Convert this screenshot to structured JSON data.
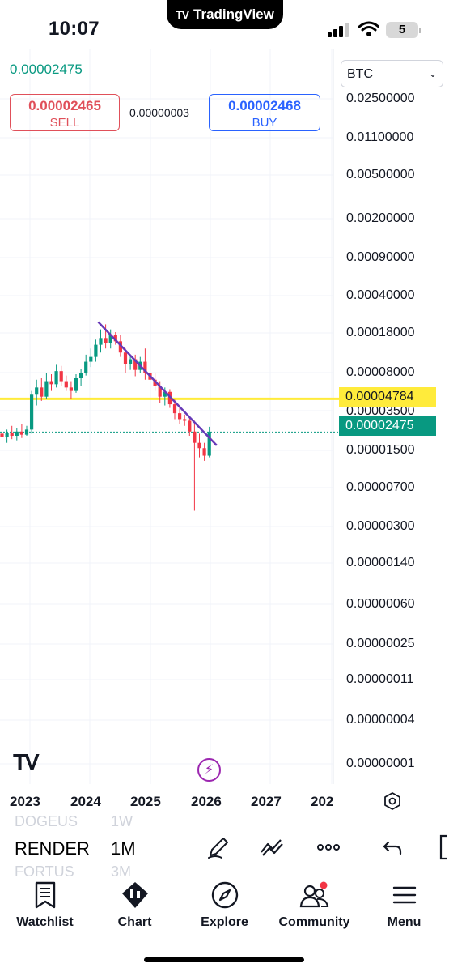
{
  "status": {
    "time": "10:07",
    "app_pill": "TradingView",
    "battery": "5"
  },
  "quote": {
    "last": "0.00002475",
    "sell_value": "0.00002465",
    "sell_label": "SELL",
    "buy_value": "0.00002468",
    "buy_label": "BUY",
    "spread": "0.00000003",
    "currency": "BTC"
  },
  "price_axis": [
    "0.02500000",
    "0.01100000",
    "0.00500000",
    "0.00200000",
    "0.00090000",
    "0.00040000",
    "0.00018000",
    "0.00008000",
    "0.00003500",
    "0.00001500",
    "0.00000700",
    "0.00000300",
    "0.00000140",
    "0.00000060",
    "0.00000025",
    "0.00000011",
    "0.00000004",
    "0.00000001"
  ],
  "tags": {
    "horizontal_line": "0.00004784",
    "current": "0.00002475"
  },
  "time_axis": [
    "2023",
    "2024",
    "2025",
    "2026",
    "2027",
    "202"
  ],
  "symbols": {
    "prev": "DOGEUS",
    "prev_interval": "1W",
    "current": "RENDER",
    "current_interval": "1M",
    "next": "FORTUS",
    "next_interval": "3M"
  },
  "nav": [
    {
      "label": "Watchlist",
      "icon": "watchlist-icon"
    },
    {
      "label": "Chart",
      "icon": "chart-icon"
    },
    {
      "label": "Explore",
      "icon": "explore-icon"
    },
    {
      "label": "Community",
      "icon": "community-icon"
    },
    {
      "label": "Menu",
      "icon": "menu-icon"
    }
  ],
  "colors": {
    "up": "#089981",
    "down": "#f23645",
    "hline": "#ffeb3b",
    "trendline": "#673ab7",
    "accent": "#2962ff"
  },
  "chart_data": {
    "type": "candlestick",
    "scale": "log",
    "horizontal_line": 4.784e-05,
    "last_price": 2.475e-05,
    "candles": [
      {
        "o": 2.4e-05,
        "h": 2.6e-05,
        "l": 2.05e-05,
        "c": 2.25e-05
      },
      {
        "o": 2.25e-05,
        "h": 2.6e-05,
        "l": 2e-05,
        "c": 2.45e-05
      },
      {
        "o": 2.45e-05,
        "h": 2.8e-05,
        "l": 2.15e-05,
        "c": 2.3e-05
      },
      {
        "o": 2.3e-05,
        "h": 2.7e-05,
        "l": 2.1e-05,
        "c": 2.5e-05
      },
      {
        "o": 2.5e-05,
        "h": 2.9e-05,
        "l": 2.2e-05,
        "c": 2.35e-05
      },
      {
        "o": 2.35e-05,
        "h": 2.8e-05,
        "l": 2.3e-05,
        "c": 2.6e-05
      },
      {
        "o": 2.6e-05,
        "h": 5.6e-05,
        "l": 2.4e-05,
        "c": 5.2e-05
      },
      {
        "o": 5.2e-05,
        "h": 7e-05,
        "l": 4.2e-05,
        "c": 6e-05
      },
      {
        "o": 6e-05,
        "h": 7.2e-05,
        "l": 4.6e-05,
        "c": 5e-05
      },
      {
        "o": 5e-05,
        "h": 8e-05,
        "l": 4.8e-05,
        "c": 6.8e-05
      },
      {
        "o": 6.8e-05,
        "h": 7.8e-05,
        "l": 5.6e-05,
        "c": 6.4e-05
      },
      {
        "o": 6.4e-05,
        "h": 9.4e-05,
        "l": 6e-05,
        "c": 8.3e-05
      },
      {
        "o": 8.3e-05,
        "h": 9.2e-05,
        "l": 6.2e-05,
        "c": 6.8e-05
      },
      {
        "o": 6.8e-05,
        "h": 7.6e-05,
        "l": 5.6e-05,
        "c": 6e-05
      },
      {
        "o": 6e-05,
        "h": 6.8e-05,
        "l": 4.8e-05,
        "c": 5.6e-05
      },
      {
        "o": 5.6e-05,
        "h": 7.8e-05,
        "l": 5.4e-05,
        "c": 7.2e-05
      },
      {
        "o": 7.2e-05,
        "h": 8.6e-05,
        "l": 6.2e-05,
        "c": 8e-05
      },
      {
        "o": 8e-05,
        "h": 0.000115,
        "l": 7.6e-05,
        "c": 0.0001
      },
      {
        "o": 0.0001,
        "h": 0.00013,
        "l": 9e-05,
        "c": 0.00011
      },
      {
        "o": 0.00011,
        "h": 0.000155,
        "l": 0.0001,
        "c": 0.00014
      },
      {
        "o": 0.00014,
        "h": 0.00019,
        "l": 0.00012,
        "c": 0.00016
      },
      {
        "o": 0.00016,
        "h": 0.00021,
        "l": 0.00013,
        "c": 0.000145
      },
      {
        "o": 0.000145,
        "h": 0.00019,
        "l": 0.00013,
        "c": 0.00017
      },
      {
        "o": 0.00017,
        "h": 0.00018,
        "l": 0.00014,
        "c": 0.00015
      },
      {
        "o": 0.00015,
        "h": 0.00017,
        "l": 0.00011,
        "c": 0.00012
      },
      {
        "o": 0.00012,
        "h": 0.00013,
        "l": 8e-05,
        "c": 9.5e-05
      },
      {
        "o": 9.5e-05,
        "h": 0.000115,
        "l": 8.5e-05,
        "c": 0.000105
      },
      {
        "o": 0.000105,
        "h": 0.000115,
        "l": 7.5e-05,
        "c": 8.5e-05
      },
      {
        "o": 8.5e-05,
        "h": 0.00011,
        "l": 8e-05,
        "c": 0.0001
      },
      {
        "o": 0.0001,
        "h": 0.00013,
        "l": 7e-05,
        "c": 8e-05
      },
      {
        "o": 8e-05,
        "h": 9e-05,
        "l": 6.5e-05,
        "c": 7e-05
      },
      {
        "o": 7e-05,
        "h": 8e-05,
        "l": 5.6e-05,
        "c": 6.2e-05
      },
      {
        "o": 6.2e-05,
        "h": 6.8e-05,
        "l": 4.4e-05,
        "c": 5e-05
      },
      {
        "o": 5e-05,
        "h": 6e-05,
        "l": 4.2e-05,
        "c": 5.5e-05
      },
      {
        "o": 5.5e-05,
        "h": 5.8e-05,
        "l": 4e-05,
        "c": 4.3e-05
      },
      {
        "o": 4.3e-05,
        "h": 4.7e-05,
        "l": 3.2e-05,
        "c": 3.6e-05
      },
      {
        "o": 3.6e-05,
        "h": 4e-05,
        "l": 2.9e-05,
        "c": 3.2e-05
      },
      {
        "o": 3.2e-05,
        "h": 3.5e-05,
        "l": 2.8e-05,
        "c": 3.1e-05
      },
      {
        "o": 3.1e-05,
        "h": 3.4e-05,
        "l": 2.3e-05,
        "c": 2.5e-05
      },
      {
        "o": 2.5e-05,
        "h": 3.1e-05,
        "l": 5.2e-06,
        "c": 2e-05
      },
      {
        "o": 2e-05,
        "h": 2.4e-05,
        "l": 1.5e-05,
        "c": 1.8e-05
      },
      {
        "o": 1.8e-05,
        "h": 2e-05,
        "l": 1.4e-05,
        "c": 1.55e-05
      },
      {
        "o": 1.55e-05,
        "h": 2.75e-05,
        "l": 1.5e-05,
        "c": 2.48e-05
      }
    ],
    "trendline": {
      "from": 0.00022,
      "to": 1.9e-05
    }
  }
}
